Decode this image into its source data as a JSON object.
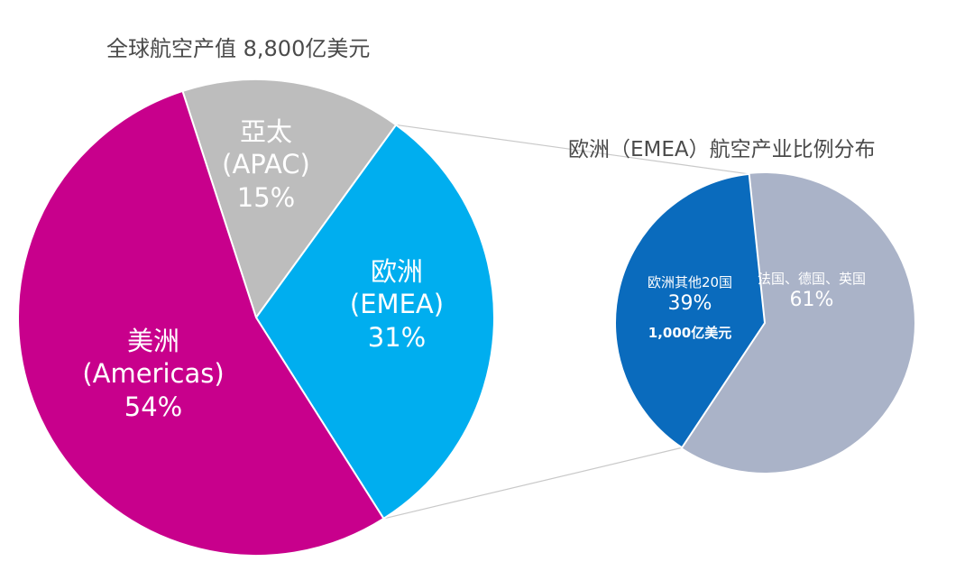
{
  "chart_data": [
    {
      "type": "pie",
      "title": "全球航空产值 8,800亿美元",
      "slices": [
        {
          "name": "亞太",
          "name2": "(APAC)",
          "value": 15,
          "pct_label": "15%",
          "color": "#bdbdbd"
        },
        {
          "name": "欧洲",
          "name2": "(EMEA)",
          "value": 31,
          "pct_label": "31%",
          "color": "#00aeef"
        },
        {
          "name": "美洲",
          "name2": "(Americas)",
          "value": 54,
          "pct_label": "54%",
          "color": "#c8008c"
        }
      ]
    },
    {
      "type": "pie",
      "title": "欧洲（EMEA）航空产业比例分布",
      "slices": [
        {
          "name": "欧洲其他20国",
          "value": 39,
          "pct_label": "39%",
          "extra": "1,000亿美元",
          "color": "#0a6bbd"
        },
        {
          "name": "法国、德国、英国",
          "value": 61,
          "pct_label": "61%",
          "color": "#aab3c8"
        }
      ]
    }
  ]
}
